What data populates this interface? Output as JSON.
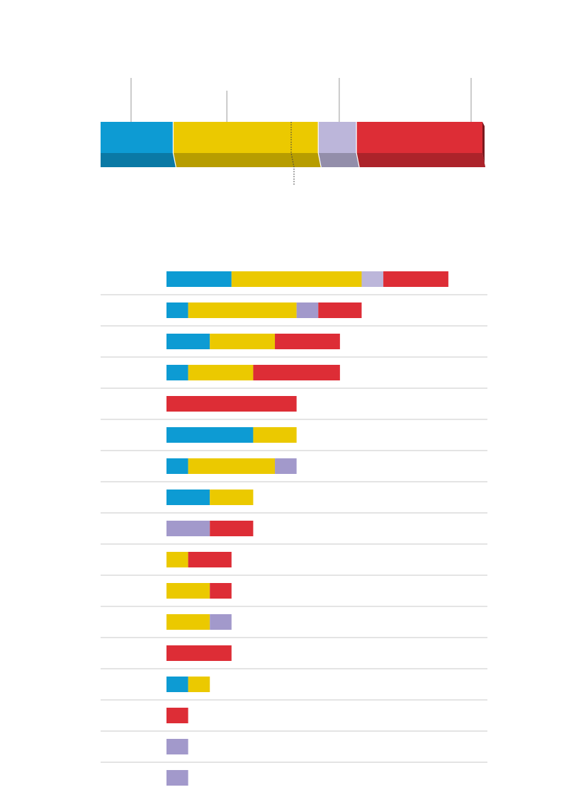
{
  "colors": {
    "blue": "#0d9bd3",
    "yellow": "#ebc900",
    "lavender": "#bcb6da",
    "purple": "#a299cb",
    "red": "#dd2d36",
    "rule": "#c8c8c8",
    "leader": "#999999"
  },
  "chart_data": [
    {
      "type": "bar",
      "orientation": "horizontal",
      "stacked": true,
      "shape": "3d-single-bar",
      "categories": [
        ""
      ],
      "series": [
        {
          "color": "blue",
          "values": [
            19
          ]
        },
        {
          "color": "yellow",
          "values": [
            38
          ]
        },
        {
          "color": "lavender",
          "values": [
            10
          ]
        },
        {
          "color": "red",
          "values": [
            33
          ]
        }
      ],
      "reference_line": {
        "style": "dotted",
        "value": 50
      },
      "xlim": [
        0,
        100
      ],
      "grid": false,
      "legend": "none"
    },
    {
      "type": "bar",
      "orientation": "horizontal",
      "stacked": true,
      "categories": [
        "",
        "",
        "",
        "",
        "",
        "",
        "",
        "",
        "",
        "",
        "",
        "",
        "",
        "",
        "",
        "",
        ""
      ],
      "series": [
        {
          "color": "blue",
          "values": [
            3,
            1,
            2,
            1,
            0,
            4,
            1,
            2,
            0,
            0,
            0,
            0,
            0,
            1,
            0,
            0,
            0
          ]
        },
        {
          "color": "yellow",
          "values": [
            6,
            5,
            3,
            3,
            0,
            2,
            4,
            2,
            0,
            1,
            2,
            2,
            0,
            1,
            0,
            0,
            0
          ]
        },
        {
          "color": "lavender",
          "values": [
            1,
            1,
            0,
            0,
            0,
            0,
            1,
            0,
            2,
            0,
            0,
            1,
            0,
            0,
            0,
            1,
            1
          ]
        },
        {
          "color": "red",
          "values": [
            3,
            2,
            3,
            4,
            6,
            0,
            0,
            0,
            2,
            2,
            1,
            0,
            3,
            0,
            1,
            0,
            0
          ]
        }
      ],
      "xlim": [
        0,
        14.8
      ],
      "grid": false,
      "legend": "none"
    }
  ]
}
